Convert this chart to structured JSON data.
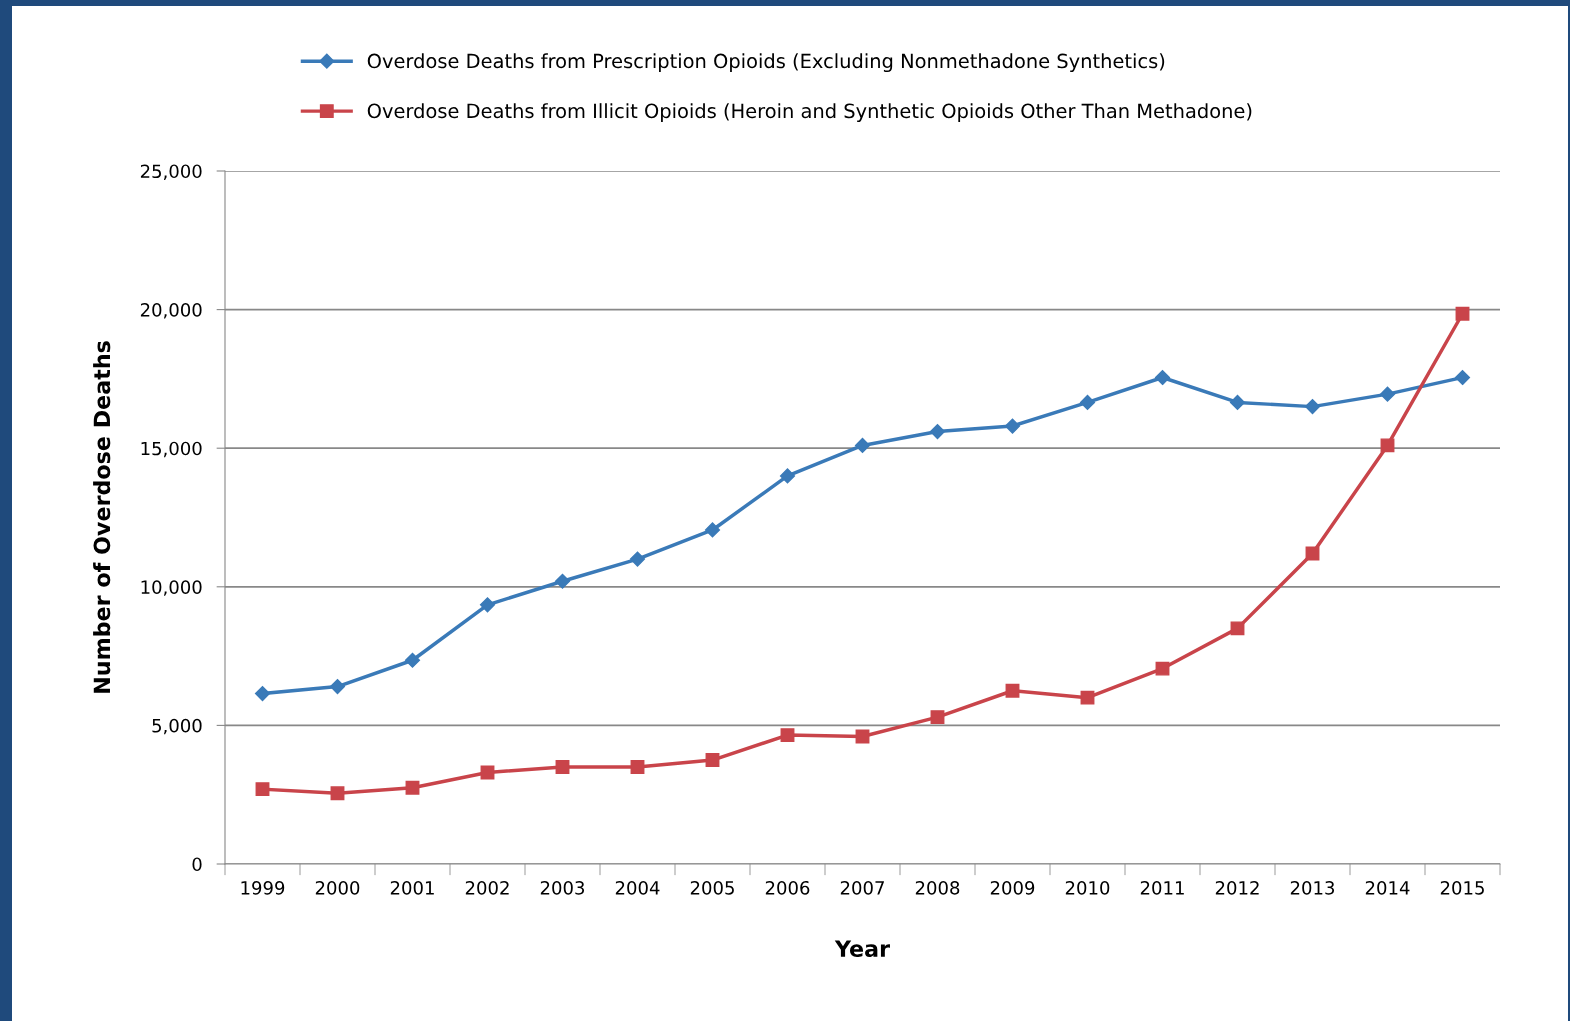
{
  "chart_data": {
    "type": "line",
    "xlabel": "Year",
    "ylabel": "Number of Overdose Deaths",
    "categories": [
      "1999",
      "2000",
      "2001",
      "2002",
      "2003",
      "2004",
      "2005",
      "2006",
      "2007",
      "2008",
      "2009",
      "2010",
      "2011",
      "2012",
      "2013",
      "2014",
      "2015"
    ],
    "series": [
      {
        "name": "Overdose Deaths from Prescription Opioids (Excluding Nonmethadone Synthetics)",
        "color": "#3a7ab8",
        "marker": "diamond",
        "values": [
          6150,
          6400,
          7350,
          9350,
          10200,
          11000,
          12050,
          14000,
          15100,
          15600,
          15800,
          16650,
          17550,
          16650,
          16500,
          16950,
          17550
        ]
      },
      {
        "name": "Overdose Deaths from Illicit Opioids (Heroin and Synthetic Opioids Other Than Methadone)",
        "color": "#c9444a",
        "marker": "square",
        "values": [
          2700,
          2550,
          2750,
          3300,
          3500,
          3500,
          3750,
          4650,
          4600,
          5300,
          6250,
          6000,
          7050,
          8500,
          11200,
          15100,
          19850
        ]
      }
    ],
    "ylim": [
      0,
      25000
    ],
    "yticks": [
      {
        "value": 0,
        "label": "0"
      },
      {
        "value": 5000,
        "label": "5,000"
      },
      {
        "value": 10000,
        "label": "10,000"
      },
      {
        "value": 15000,
        "label": "15,000"
      },
      {
        "value": 20000,
        "label": "20,000"
      },
      {
        "value": 25000,
        "label": "25,000"
      }
    ],
    "grid": "y",
    "legend": "top",
    "line_style": "solid"
  }
}
